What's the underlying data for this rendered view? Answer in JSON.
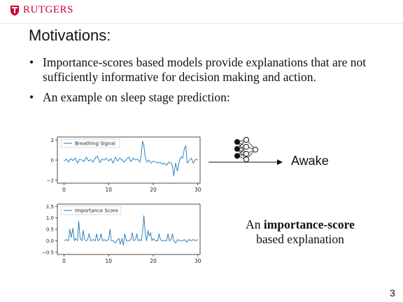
{
  "header": {
    "logo_text": "RUTGERS",
    "brand_color": "#cc0033",
    "logo_icon": "rutgers-shield-icon"
  },
  "title": "Motivations:",
  "bullets": [
    "Importance-scores based models provide explanations that are not sufficiently informative for decision making and action.",
    "An example on sleep stage prediction:"
  ],
  "prediction": {
    "label": "Awake",
    "model_icon": "neural-network-icon",
    "arrow_icon": "right-arrow-icon"
  },
  "caption": {
    "line1_prefix": "An ",
    "line1_bold": "importance-score",
    "line2": "based explanation"
  },
  "page_number": "3",
  "chart_data": [
    {
      "type": "line",
      "legend_position": "top-left",
      "series": [
        {
          "name": "Breathing Signal",
          "color": "#1f77b4",
          "x": [
            0,
            0.5,
            1,
            1.5,
            2,
            2.5,
            3,
            3.5,
            4,
            4.5,
            5,
            5.5,
            6,
            6.5,
            7,
            7.5,
            8,
            8.5,
            9,
            9.5,
            10,
            10.5,
            11,
            11.5,
            12,
            12.5,
            13,
            13.5,
            14,
            14.5,
            15,
            15.5,
            16,
            16.5,
            17,
            17.3,
            17.6,
            17.9,
            18.2,
            18.6,
            19,
            19.5,
            20,
            20.5,
            21,
            21.5,
            22,
            22.5,
            23,
            23.5,
            24,
            24.3,
            24.6,
            25,
            25.4,
            25.8,
            26.2,
            26.6,
            27,
            27.3,
            27.6,
            28,
            28.5,
            29,
            29.5,
            30
          ],
          "y": [
            -0.1,
            0.1,
            -0.2,
            0.15,
            -0.05,
            0.2,
            -0.3,
            0.1,
            0.0,
            -0.15,
            0.3,
            -0.1,
            0.05,
            -0.2,
            0.2,
            0.4,
            -0.25,
            0.1,
            0.0,
            0.2,
            -0.1,
            0.15,
            -0.3,
            0.3,
            -0.1,
            0.2,
            0.0,
            -0.2,
            0.1,
            0.3,
            -0.15,
            0.2,
            0.0,
            0.1,
            -0.2,
            0.5,
            1.9,
            1.4,
            0.3,
            -0.2,
            0.0,
            -0.3,
            -0.1,
            -0.2,
            -0.3,
            -0.2,
            -0.4,
            -0.3,
            -0.5,
            -0.2,
            -0.3,
            -0.6,
            -1.6,
            -0.3,
            -1.1,
            -0.2,
            0.3,
            0.2,
            1.2,
            1.4,
            -0.3,
            -0.1,
            0.2,
            -0.3,
            0.1,
            0.0
          ]
        }
      ],
      "xlim": [
        -1.5,
        30.5
      ],
      "ylim": [
        -2.3,
        2.3
      ],
      "xticks": [
        0,
        10,
        20,
        30
      ],
      "xtick_labels": [
        "0",
        "10",
        "20",
        "30"
      ],
      "yticks": [
        2,
        0,
        -2
      ],
      "ytick_labels": [
        "2",
        "0",
        "−2"
      ],
      "title": "",
      "xlabel": "",
      "ylabel": "",
      "grid": false
    },
    {
      "type": "line",
      "legend_position": "top-left",
      "series": [
        {
          "name": "Importance Score",
          "color": "#1f77b4",
          "x": [
            0,
            0.5,
            1,
            1.3,
            1.6,
            2,
            2.3,
            2.6,
            3,
            3.3,
            3.6,
            4,
            4.3,
            4.6,
            5,
            5.3,
            5.6,
            6,
            6.5,
            7,
            7.3,
            7.6,
            8,
            8.3,
            8.6,
            9,
            9.5,
            10,
            10.3,
            10.6,
            11,
            11.5,
            12,
            12.3,
            12.6,
            13,
            13.3,
            13.6,
            14,
            14.5,
            15,
            15.3,
            15.6,
            16,
            16.3,
            16.6,
            17,
            17.3,
            17.6,
            17.9,
            18.2,
            18.5,
            18.8,
            19.1,
            19.4,
            19.7,
            20,
            20.5,
            21,
            21.3,
            21.6,
            22,
            22.5,
            23,
            23.3,
            23.6,
            24,
            24.3,
            24.6,
            25,
            25.5,
            26,
            26.5,
            27,
            27.5,
            28,
            28.5,
            29,
            29.5,
            30
          ],
          "y": [
            0.0,
            0.05,
            0.0,
            0.5,
            0.15,
            0.55,
            0.0,
            0.1,
            0.0,
            0.85,
            0.1,
            0.0,
            0.45,
            0.05,
            0.0,
            0.05,
            0.3,
            0.0,
            0.05,
            0.0,
            0.3,
            0.0,
            0.05,
            0.3,
            0.0,
            0.05,
            0.0,
            0.05,
            0.5,
            0.0,
            0.0,
            -0.1,
            0.05,
            0.1,
            -0.15,
            0.1,
            -0.2,
            0.3,
            0.0,
            0.0,
            0.05,
            0.35,
            0.0,
            0.05,
            0.3,
            0.0,
            0.05,
            0.0,
            0.4,
            1.1,
            0.3,
            0.0,
            0.45,
            0.2,
            0.35,
            0.0,
            0.1,
            0.0,
            0.0,
            0.3,
            0.05,
            0.0,
            0.0,
            0.0,
            0.3,
            0.0,
            0.05,
            0.3,
            0.0,
            -0.1,
            0.05,
            0.0,
            0.0,
            0.05,
            -0.05,
            0.05,
            0.0,
            0.05,
            0.0,
            0.05
          ]
        }
      ],
      "xlim": [
        -1.5,
        30.5
      ],
      "ylim": [
        -0.6,
        1.6
      ],
      "xticks": [
        0,
        10,
        20,
        30
      ],
      "xtick_labels": [
        "0",
        "10",
        "20",
        "30"
      ],
      "yticks": [
        1.5,
        1.0,
        0.5,
        0.0,
        -0.5
      ],
      "ytick_labels": [
        "1.5",
        "1.0",
        "0.5",
        "0.0",
        "−0.5"
      ],
      "title": "",
      "xlabel": "",
      "ylabel": "",
      "grid": false
    }
  ]
}
